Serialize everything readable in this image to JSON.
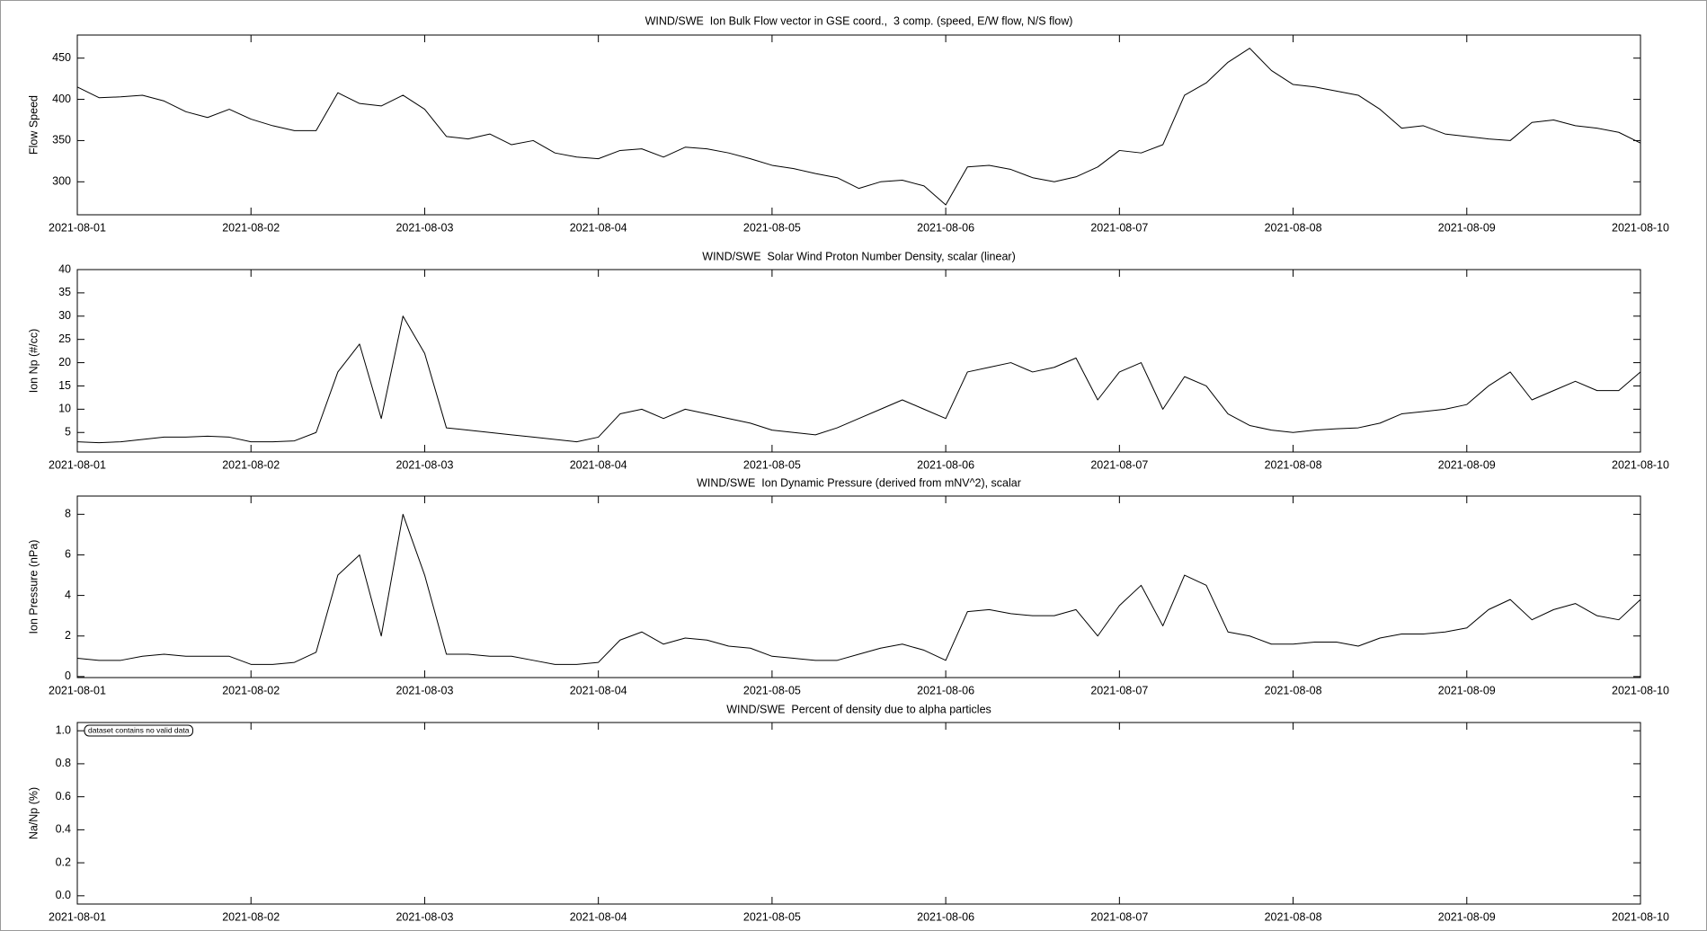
{
  "chart_data": [
    {
      "type": "line",
      "title": "WIND/SWE  Ion Bulk Flow vector in GSE coord.,  3 comp. (speed, E/W flow, N/S flow)",
      "y_label": "Flow Speed",
      "x": [
        0,
        0.125,
        0.25,
        0.375,
        0.5,
        0.625,
        0.75,
        0.875,
        1,
        1.125,
        1.25,
        1.375,
        1.5,
        1.625,
        1.75,
        1.875,
        2,
        2.125,
        2.25,
        2.375,
        2.5,
        2.625,
        2.75,
        2.875,
        3,
        3.125,
        3.25,
        3.375,
        3.5,
        3.625,
        3.75,
        3.875,
        4,
        4.125,
        4.25,
        4.375,
        4.5,
        4.625,
        4.75,
        4.875,
        5,
        5.125,
        5.25,
        5.375,
        5.5,
        5.625,
        5.75,
        5.875,
        6,
        6.125,
        6.25,
        6.375,
        6.5,
        6.625,
        6.75,
        6.875,
        7,
        7.125,
        7.25,
        7.375,
        7.5,
        7.625,
        7.75,
        7.875,
        8,
        8.125,
        8.25,
        8.375,
        8.5,
        8.625,
        8.75,
        8.875,
        9
      ],
      "values": [
        415,
        402,
        403,
        405,
        398,
        385,
        378,
        388,
        376,
        368,
        362,
        362,
        408,
        395,
        392,
        405,
        388,
        355,
        352,
        358,
        345,
        350,
        335,
        330,
        328,
        338,
        340,
        330,
        342,
        340,
        335,
        328,
        320,
        316,
        310,
        305,
        292,
        300,
        302,
        295,
        272,
        318,
        320,
        315,
        305,
        300,
        306,
        318,
        338,
        335,
        345,
        405,
        420,
        445,
        462,
        435,
        418,
        415,
        410,
        405,
        388,
        365,
        368,
        358,
        355,
        352,
        350,
        372,
        375,
        368,
        365,
        360,
        347
      ],
      "color": "#000000",
      "xlim": [
        0,
        9
      ],
      "xticks": [
        {
          "value": 0,
          "label": "2021-08-01"
        },
        {
          "value": 1,
          "label": "2021-08-02"
        },
        {
          "value": 2,
          "label": "2021-08-03"
        },
        {
          "value": 3,
          "label": "2021-08-04"
        },
        {
          "value": 4,
          "label": "2021-08-05"
        },
        {
          "value": 5,
          "label": "2021-08-06"
        },
        {
          "value": 6,
          "label": "2021-08-07"
        },
        {
          "value": 7,
          "label": "2021-08-08"
        },
        {
          "value": 8,
          "label": "2021-08-09"
        },
        {
          "value": 9,
          "label": "2021-08-10"
        }
      ],
      "ylim": [
        260,
        478
      ],
      "yticks": [
        300,
        350,
        400,
        450
      ]
    },
    {
      "type": "line",
      "title": "WIND/SWE  Solar Wind Proton Number Density, scalar (linear)",
      "y_label": "Ion Np (#/cc)",
      "x": [
        0,
        0.125,
        0.25,
        0.375,
        0.5,
        0.625,
        0.75,
        0.875,
        1,
        1.125,
        1.25,
        1.375,
        1.5,
        1.625,
        1.75,
        1.875,
        2,
        2.125,
        2.25,
        2.375,
        2.5,
        2.625,
        2.75,
        2.875,
        3,
        3.125,
        3.25,
        3.375,
        3.5,
        3.625,
        3.75,
        3.875,
        4,
        4.125,
        4.25,
        4.375,
        4.5,
        4.625,
        4.75,
        4.875,
        5,
        5.125,
        5.25,
        5.375,
        5.5,
        5.625,
        5.75,
        5.875,
        6,
        6.125,
        6.25,
        6.375,
        6.5,
        6.625,
        6.75,
        6.875,
        7,
        7.125,
        7.25,
        7.375,
        7.5,
        7.625,
        7.75,
        7.875,
        8,
        8.125,
        8.25,
        8.375,
        8.5,
        8.625,
        8.75,
        8.875,
        9
      ],
      "values": [
        3,
        2.8,
        3,
        3.5,
        4,
        4,
        4.2,
        4,
        3,
        3,
        3.2,
        5,
        18,
        24,
        8,
        30,
        22,
        6,
        5.5,
        5,
        4.5,
        4,
        3.5,
        3,
        4,
        9,
        10,
        8,
        10,
        9,
        8,
        7,
        5.5,
        5,
        4.5,
        6,
        8,
        10,
        12,
        10,
        8,
        18,
        19,
        20,
        18,
        19,
        21,
        12,
        18,
        20,
        10,
        17,
        15,
        9,
        6.5,
        5.5,
        5,
        5.5,
        5.8,
        6,
        7,
        9,
        9.5,
        10,
        11,
        15,
        18,
        12,
        14,
        16,
        14,
        14,
        18
      ],
      "color": "#000000",
      "xlim": [
        0,
        9
      ],
      "xticks": [
        {
          "value": 0,
          "label": "2021-08-01"
        },
        {
          "value": 1,
          "label": "2021-08-02"
        },
        {
          "value": 2,
          "label": "2021-08-03"
        },
        {
          "value": 3,
          "label": "2021-08-04"
        },
        {
          "value": 4,
          "label": "2021-08-05"
        },
        {
          "value": 5,
          "label": "2021-08-06"
        },
        {
          "value": 6,
          "label": "2021-08-07"
        },
        {
          "value": 7,
          "label": "2021-08-08"
        },
        {
          "value": 8,
          "label": "2021-08-09"
        },
        {
          "value": 9,
          "label": "2021-08-10"
        }
      ],
      "ylim": [
        0.8,
        40
      ],
      "yticks": [
        5,
        10,
        15,
        20,
        25,
        30,
        35,
        40
      ]
    },
    {
      "type": "line",
      "title": "WIND/SWE  Ion Dynamic Pressure (derived from mNV^2), scalar",
      "y_label": "Ion Pressure (nPa)",
      "x": [
        0,
        0.125,
        0.25,
        0.375,
        0.5,
        0.625,
        0.75,
        0.875,
        1,
        1.125,
        1.25,
        1.375,
        1.5,
        1.625,
        1.75,
        1.875,
        2,
        2.125,
        2.25,
        2.375,
        2.5,
        2.625,
        2.75,
        2.875,
        3,
        3.125,
        3.25,
        3.375,
        3.5,
        3.625,
        3.75,
        3.875,
        4,
        4.125,
        4.25,
        4.375,
        4.5,
        4.625,
        4.75,
        4.875,
        5,
        5.125,
        5.25,
        5.375,
        5.5,
        5.625,
        5.75,
        5.875,
        6,
        6.125,
        6.25,
        6.375,
        6.5,
        6.625,
        6.75,
        6.875,
        7,
        7.125,
        7.25,
        7.375,
        7.5,
        7.625,
        7.75,
        7.875,
        8,
        8.125,
        8.25,
        8.375,
        8.5,
        8.625,
        8.75,
        8.875,
        9
      ],
      "values": [
        0.9,
        0.8,
        0.8,
        1.0,
        1.1,
        1.0,
        1.0,
        1.0,
        0.6,
        0.6,
        0.7,
        1.2,
        5,
        6,
        2,
        8,
        5,
        1.1,
        1.1,
        1.0,
        1.0,
        0.8,
        0.6,
        0.6,
        0.7,
        1.8,
        2.2,
        1.6,
        1.9,
        1.8,
        1.5,
        1.4,
        1.0,
        0.9,
        0.8,
        0.8,
        1.1,
        1.4,
        1.6,
        1.3,
        0.8,
        3.2,
        3.3,
        3.1,
        3.0,
        3.0,
        3.3,
        2.0,
        3.5,
        4.5,
        2.5,
        5.0,
        4.5,
        2.2,
        2.0,
        1.6,
        1.6,
        1.7,
        1.7,
        1.5,
        1.9,
        2.1,
        2.1,
        2.2,
        2.4,
        3.3,
        3.8,
        2.8,
        3.3,
        3.6,
        3.0,
        2.8,
        3.8
      ],
      "color": "#000000",
      "xlim": [
        0,
        9
      ],
      "xticks": [
        {
          "value": 0,
          "label": "2021-08-01"
        },
        {
          "value": 1,
          "label": "2021-08-02"
        },
        {
          "value": 2,
          "label": "2021-08-03"
        },
        {
          "value": 3,
          "label": "2021-08-04"
        },
        {
          "value": 4,
          "label": "2021-08-05"
        },
        {
          "value": 5,
          "label": "2021-08-06"
        },
        {
          "value": 6,
          "label": "2021-08-07"
        },
        {
          "value": 7,
          "label": "2021-08-08"
        },
        {
          "value": 8,
          "label": "2021-08-09"
        },
        {
          "value": 9,
          "label": "2021-08-10"
        }
      ],
      "ylim": [
        -0.05,
        8.9
      ],
      "yticks": [
        0,
        2,
        4,
        6,
        8
      ]
    },
    {
      "type": "line",
      "title": "WIND/SWE  Percent of density due to alpha particles",
      "y_label": "Na/Np (%)",
      "annotation": "dataset contains no valid data",
      "color": "#000000",
      "xlim": [
        0,
        9
      ],
      "xticks": [
        {
          "value": 0,
          "label": "2021-08-01"
        },
        {
          "value": 1,
          "label": "2021-08-02"
        },
        {
          "value": 2,
          "label": "2021-08-03"
        },
        {
          "value": 3,
          "label": "2021-08-04"
        },
        {
          "value": 4,
          "label": "2021-08-05"
        },
        {
          "value": 5,
          "label": "2021-08-06"
        },
        {
          "value": 6,
          "label": "2021-08-07"
        },
        {
          "value": 7,
          "label": "2021-08-08"
        },
        {
          "value": 8,
          "label": "2021-08-09"
        },
        {
          "value": 9,
          "label": "2021-08-10"
        }
      ],
      "ylim": [
        -0.05,
        1.05
      ],
      "yticks": [
        {
          "value": 0,
          "label": "0.0"
        },
        0.2,
        0.4,
        0.6,
        0.8,
        {
          "value": 1,
          "label": "1.0"
        }
      ]
    }
  ]
}
